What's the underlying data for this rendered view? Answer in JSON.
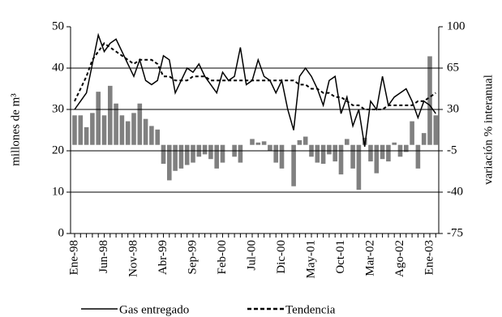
{
  "chart_data": {
    "type": "combo",
    "ylabel": "millones de m³",
    "y2label": "variación % interanual",
    "categories": [
      "Ene-98",
      null,
      null,
      null,
      null,
      "Jun-98",
      null,
      null,
      null,
      null,
      "Nov-98",
      null,
      null,
      null,
      null,
      "Abr-99",
      null,
      null,
      null,
      null,
      "Sep-99",
      null,
      null,
      null,
      null,
      "Feb-00",
      null,
      null,
      null,
      null,
      "Jul-00",
      null,
      null,
      null,
      null,
      "Dic-00",
      null,
      null,
      null,
      null,
      "May-01",
      null,
      null,
      null,
      null,
      "Oct-01",
      null,
      null,
      null,
      null,
      "Mar-02",
      null,
      null,
      null,
      null,
      "Ago-02",
      null,
      null,
      null,
      null,
      "Ene-03",
      null
    ],
    "ylim": [
      0,
      50
    ],
    "yticks": [
      0,
      10,
      20,
      30,
      40,
      50
    ],
    "y2lim": [
      -75,
      100
    ],
    "y2ticks": [
      -75,
      -40,
      -5,
      30,
      65,
      100
    ],
    "grid": true,
    "series": [
      {
        "type": "bar",
        "axis": "y2",
        "color": "#808080",
        "values": [
          25,
          25,
          15,
          27,
          45,
          25,
          50,
          35,
          25,
          20,
          27,
          35,
          22,
          16,
          13,
          -16,
          -30,
          -22,
          -20,
          -17,
          -15,
          -10,
          -8,
          -12,
          -20,
          -15,
          0,
          -10,
          -15,
          0,
          5,
          2,
          3,
          -5,
          -15,
          -20,
          0,
          -35,
          4,
          7,
          -10,
          -15,
          -16,
          -8,
          -14,
          -25,
          5,
          -20,
          -38,
          6,
          -14,
          -24,
          -12,
          -14,
          2,
          -10,
          -6,
          20,
          -20,
          10,
          75,
          25
        ]
      },
      {
        "type": "line",
        "name": "Gas entregado",
        "color": "#000000",
        "dash": false,
        "values": [
          30,
          32,
          34,
          41,
          48,
          44,
          46,
          47,
          44,
          41,
          38,
          42,
          37,
          36,
          37,
          43,
          42,
          34,
          37,
          40,
          39,
          41,
          38,
          36,
          34,
          39,
          37,
          38,
          45,
          36,
          37,
          42,
          38,
          37,
          34,
          37,
          30,
          25,
          38,
          40,
          38,
          35,
          31,
          37,
          38,
          29,
          33,
          26,
          30,
          21,
          32,
          30,
          38,
          31,
          33,
          34,
          35,
          32,
          28,
          32,
          31,
          29
        ]
      },
      {
        "type": "line",
        "name": "Tendencia",
        "color": "#000000",
        "dash": true,
        "values": [
          32,
          35,
          38,
          42,
          44,
          46,
          45,
          44,
          43,
          42,
          41,
          42,
          42,
          42,
          41,
          38,
          38,
          37,
          37,
          37,
          38,
          38,
          38,
          37,
          37,
          37,
          37,
          37,
          37,
          37,
          37,
          37,
          37,
          37,
          37,
          37,
          37,
          37,
          36,
          36,
          35,
          35,
          34,
          34,
          33,
          33,
          32,
          31,
          31,
          30,
          30,
          30,
          30,
          31,
          31,
          31,
          31,
          31,
          32,
          32,
          33,
          34
        ]
      }
    ]
  }
}
